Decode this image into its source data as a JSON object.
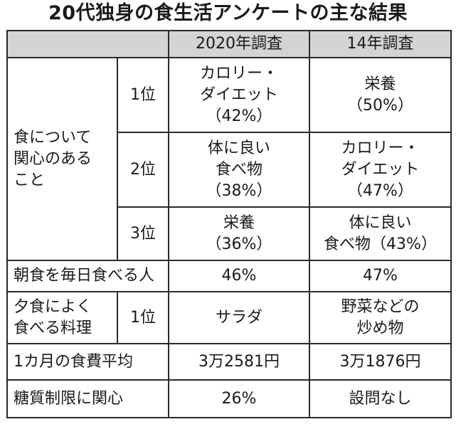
{
  "title": "20代独身の食生活アンケートの主な結果",
  "header": {
    "col_2020": "2020年調査",
    "col_14": "14年調査"
  },
  "interest": {
    "label_lines": [
      "食について",
      "関心のある",
      "こと"
    ],
    "rows": [
      {
        "rank": "1位",
        "y2020": [
          "カロリー・",
          "ダイエット",
          "（42%）"
        ],
        "y14": [
          "栄養",
          "（50%）"
        ]
      },
      {
        "rank": "2位",
        "y2020": [
          "体に良い",
          "食べ物",
          "（38%）"
        ],
        "y14": [
          "カロリー・",
          "ダイエット",
          "（47%）"
        ]
      },
      {
        "rank": "3位",
        "y2020": [
          "栄養",
          "（36%）"
        ],
        "y14": [
          "体に良い",
          "食べ物（43%）"
        ]
      }
    ]
  },
  "breakfast": {
    "label": "朝食を毎日食べる人",
    "y2020": "46%",
    "y14": "47%"
  },
  "dinner": {
    "label_lines": [
      "夕食によく",
      "食べる料理"
    ],
    "rank": "1位",
    "y2020": "サラダ",
    "y14": [
      "野菜などの",
      "炒め物"
    ]
  },
  "food_cost": {
    "label": "1カ月の食費平均",
    "y2020": "3万2581円",
    "y14": "3万1876円"
  },
  "carb": {
    "label": "糖質制限に関心",
    "y2020": "26%",
    "y14": "設問なし"
  },
  "colors": {
    "header_bg": "#d4d4d4",
    "border": "#2a2a2a",
    "text": "#1a1a1a"
  }
}
